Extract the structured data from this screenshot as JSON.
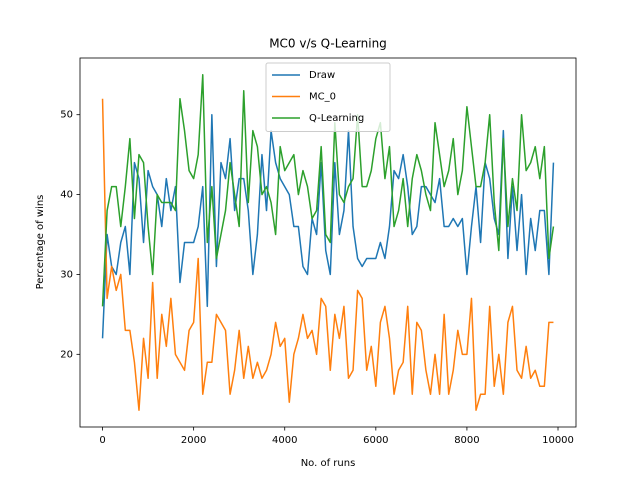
{
  "chart_data": {
    "type": "line",
    "title": "MC0 v/s Q-Learning",
    "x_label": "No. of runs",
    "y_label": "Percentage of wins",
    "x": [
      0,
      100,
      200,
      300,
      400,
      500,
      600,
      700,
      800,
      900,
      1000,
      1100,
      1200,
      1300,
      1400,
      1500,
      1600,
      1700,
      1800,
      1900,
      2000,
      2100,
      2200,
      2300,
      2400,
      2500,
      2600,
      2700,
      2800,
      2900,
      3000,
      3100,
      3200,
      3300,
      3400,
      3500,
      3600,
      3700,
      3800,
      3900,
      4000,
      4100,
      4200,
      4300,
      4400,
      4500,
      4600,
      4700,
      4800,
      4900,
      5000,
      5100,
      5200,
      5300,
      5400,
      5500,
      5600,
      5700,
      5800,
      5900,
      6000,
      6100,
      6200,
      6300,
      6400,
      6500,
      6600,
      6700,
      6800,
      6900,
      7000,
      7100,
      7200,
      7300,
      7400,
      7500,
      7600,
      7700,
      7800,
      7900,
      8000,
      8100,
      8200,
      8300,
      8400,
      8500,
      8600,
      8700,
      8800,
      8900,
      9000,
      9100,
      9200,
      9300,
      9400,
      9500,
      9600,
      9700,
      9800,
      9900
    ],
    "series": [
      {
        "name": "Draw",
        "color": "#1f77b4",
        "values": [
          22,
          35,
          31,
          30,
          34,
          36,
          30,
          44,
          42,
          34,
          43,
          41,
          40,
          36,
          42,
          38,
          41,
          29,
          34,
          34,
          34,
          36,
          41,
          26,
          50,
          31,
          44,
          42,
          47,
          38,
          42,
          42,
          38,
          30,
          35,
          45,
          38,
          48,
          44,
          42,
          41,
          40,
          36,
          36,
          31,
          30,
          37,
          35,
          44,
          33,
          30,
          44,
          35,
          38,
          48,
          36,
          32,
          31,
          32,
          32,
          32,
          34,
          32,
          36,
          43,
          42,
          45,
          41,
          35,
          36,
          41,
          41,
          40,
          39,
          42,
          36,
          36,
          37,
          36,
          37,
          30,
          36,
          41,
          34,
          44,
          42,
          37,
          35,
          48,
          32,
          41,
          33,
          40,
          30,
          37,
          33,
          38,
          38,
          30,
          44
        ]
      },
      {
        "name": "MC_0",
        "color": "#ff7f0e",
        "values": [
          52,
          27,
          31,
          28,
          30,
          23,
          23,
          19,
          13,
          22,
          17,
          29,
          17,
          25,
          21,
          27,
          20,
          19,
          18,
          23,
          24,
          32,
          15,
          19,
          19,
          25,
          24,
          23,
          15,
          18,
          23,
          17,
          21,
          17,
          19,
          17,
          18,
          20,
          24,
          21,
          22,
          14,
          20,
          22,
          25,
          22,
          23,
          20,
          27,
          26,
          18,
          25,
          22,
          26,
          17,
          18,
          28,
          27,
          18,
          21,
          16,
          24,
          26,
          22,
          15,
          18,
          19,
          26,
          15,
          24,
          23,
          18,
          15,
          20,
          15,
          25,
          15,
          18,
          23,
          20,
          20,
          27,
          13,
          15,
          15,
          26,
          16,
          20,
          15,
          24,
          26,
          18,
          17,
          21,
          17,
          18,
          16,
          16,
          24,
          24
        ]
      },
      {
        "name": "Q-Learning",
        "color": "#2ca02c",
        "values": [
          26,
          38,
          41,
          41,
          36,
          41,
          47,
          37,
          45,
          44,
          36,
          30,
          40,
          39,
          39,
          39,
          38,
          52,
          48,
          43,
          42,
          45,
          55,
          34,
          41,
          32,
          35,
          38,
          44,
          40,
          36,
          53,
          39,
          48,
          46,
          40,
          41,
          39,
          35,
          46,
          43,
          44,
          45,
          40,
          43,
          41,
          37,
          38,
          46,
          35,
          34,
          49,
          40,
          39,
          41,
          42,
          50,
          41,
          41,
          43,
          47,
          49,
          42,
          46,
          36,
          38,
          42,
          36,
          42,
          45,
          43,
          40,
          38,
          49,
          45,
          41,
          43,
          47,
          40,
          43,
          51,
          46,
          41,
          41,
          44,
          50,
          39,
          33,
          47,
          36,
          42,
          38,
          50,
          43,
          44,
          46,
          42,
          46,
          32,
          36
        ]
      }
    ],
    "xlim": [
      -495,
      10395
    ],
    "ylim": [
      10.9,
      57.1
    ],
    "xticks": [
      0,
      2000,
      4000,
      6000,
      8000,
      10000
    ],
    "yticks": [
      20,
      30,
      40,
      50
    ],
    "legend": "upper center"
  }
}
